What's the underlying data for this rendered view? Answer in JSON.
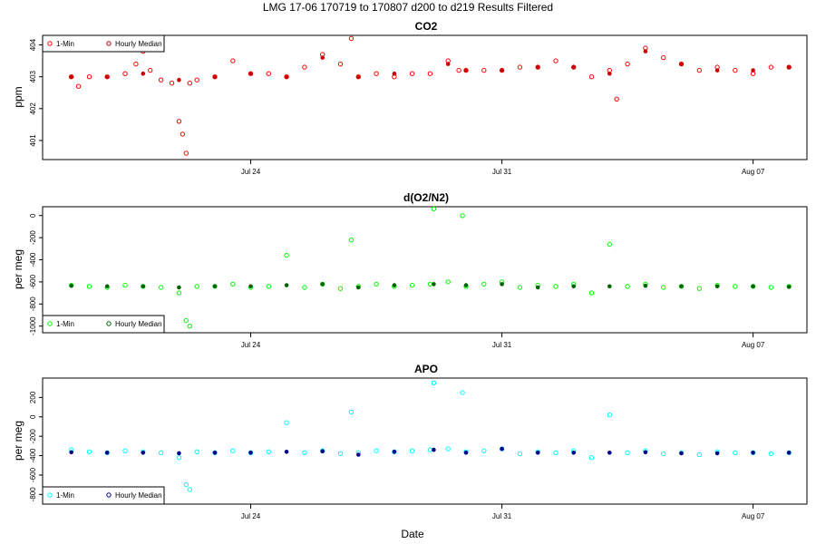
{
  "figure": {
    "title": "LMG   17-06    170719 to 170807    d200 to d219    Results Filtered",
    "xlabel": "Date"
  },
  "colors": {
    "co2_min": "#ff0000",
    "co2_hourly": "#cc0000",
    "o2_min": "#00ff00",
    "o2_hourly": "#006400",
    "apo_min": "#00ffff",
    "apo_hourly": "#00008b"
  },
  "chart_data": [
    {
      "type": "scatter",
      "title": "CO2",
      "xlabel": "",
      "ylabel": "ppm",
      "x_ticks": [
        "Jul 24",
        "Jul 31",
        "Aug 07"
      ],
      "x_tick_days": [
        24,
        31,
        38
      ],
      "xlim_days": [
        18.2,
        39.5
      ],
      "ylim": [
        400.4,
        404.3
      ],
      "y_ticks": [
        401,
        402,
        403,
        404
      ],
      "legend": {
        "position": "top-left",
        "entries": [
          "1-Min",
          "Hourly Median"
        ]
      },
      "grid": false,
      "series": [
        {
          "name": "1-Min",
          "x_days": [
            19.0,
            19.2,
            19.5,
            20.0,
            20.5,
            20.8,
            21.0,
            21.2,
            21.5,
            21.8,
            22.0,
            22.1,
            22.2,
            22.3,
            22.5,
            23.0,
            23.5,
            24.0,
            24.5,
            25.0,
            25.5,
            26.0,
            26.5,
            26.8,
            27.0,
            27.5,
            28.0,
            28.5,
            29.0,
            29.5,
            29.8,
            30.0,
            30.5,
            31.0,
            31.5,
            32.0,
            32.5,
            33.0,
            33.5,
            34.0,
            34.2,
            34.5,
            35.0,
            35.5,
            36.0,
            36.5,
            37.0,
            37.5,
            38.0,
            38.5,
            39.0
          ],
          "values": [
            403.0,
            402.7,
            403.0,
            403.0,
            403.1,
            403.4,
            403.8,
            403.2,
            402.9,
            402.8,
            401.6,
            401.2,
            400.6,
            402.8,
            402.9,
            403.0,
            403.5,
            403.1,
            403.1,
            403.0,
            403.3,
            403.7,
            403.4,
            404.2,
            403.0,
            403.1,
            403.0,
            403.1,
            403.1,
            403.5,
            403.2,
            403.2,
            403.2,
            403.2,
            403.3,
            403.3,
            403.5,
            403.3,
            403.0,
            403.2,
            402.3,
            403.4,
            403.9,
            403.6,
            403.4,
            403.2,
            403.3,
            403.2,
            403.1,
            403.3,
            403.3
          ]
        },
        {
          "name": "Hourly Median",
          "x_days": [
            19.0,
            20.0,
            21.0,
            22.0,
            23.0,
            24.0,
            25.0,
            26.0,
            27.0,
            28.0,
            29.5,
            30.0,
            31.0,
            32.0,
            33.0,
            34.0,
            35.0,
            36.0,
            37.0,
            38.0,
            39.0
          ],
          "values": [
            403.0,
            403.0,
            403.1,
            402.9,
            403.0,
            403.1,
            403.0,
            403.6,
            403.0,
            403.1,
            403.4,
            403.2,
            403.2,
            403.3,
            403.3,
            403.1,
            403.8,
            403.4,
            403.2,
            403.2,
            403.3
          ]
        }
      ]
    },
    {
      "type": "scatter",
      "title": "d(O2/N2)",
      "xlabel": "",
      "ylabel": "per meg",
      "x_ticks": [
        "Jul 24",
        "Jul 31",
        "Aug 07"
      ],
      "x_tick_days": [
        24,
        31,
        38
      ],
      "xlim_days": [
        18.2,
        39.5
      ],
      "ylim": [
        -1060,
        80
      ],
      "y_ticks": [
        -1000,
        -800,
        -600,
        -400,
        -200,
        0
      ],
      "legend": {
        "position": "bottom-left",
        "entries": [
          "1-Min",
          "Hourly Median"
        ]
      },
      "grid": false,
      "series": [
        {
          "name": "1-Min",
          "x_days": [
            19.0,
            19.5,
            20.0,
            20.5,
            21.0,
            21.5,
            22.0,
            22.2,
            22.3,
            22.5,
            23.0,
            23.5,
            24.0,
            24.5,
            25.0,
            25.5,
            26.0,
            26.5,
            26.8,
            27.0,
            27.5,
            28.0,
            28.5,
            29.0,
            29.1,
            29.5,
            29.9,
            30.0,
            30.5,
            31.0,
            31.5,
            32.0,
            32.5,
            33.0,
            33.5,
            34.0,
            34.5,
            35.0,
            35.5,
            36.0,
            36.5,
            37.0,
            37.5,
            38.0,
            38.5,
            39.0
          ],
          "values": [
            -630,
            -640,
            -650,
            -630,
            -640,
            -650,
            -700,
            -950,
            -1000,
            -640,
            -640,
            -620,
            -650,
            -640,
            -360,
            -650,
            -620,
            -660,
            -220,
            -640,
            -620,
            -640,
            -630,
            -620,
            60,
            -600,
            0,
            -640,
            -620,
            -600,
            -650,
            -630,
            -640,
            -620,
            -700,
            -260,
            -640,
            -620,
            -650,
            -640,
            -660,
            -630,
            -640,
            -640,
            -650,
            -640
          ]
        },
        {
          "name": "Hourly Median",
          "x_days": [
            19.0,
            20.0,
            21.0,
            22.0,
            23.0,
            24.0,
            25.0,
            26.0,
            27.0,
            28.0,
            29.1,
            30.0,
            31.0,
            32.0,
            33.0,
            34.0,
            35.0,
            36.0,
            37.0,
            38.0,
            39.0
          ],
          "values": [
            -635,
            -640,
            -640,
            -650,
            -640,
            -640,
            -630,
            -620,
            -650,
            -630,
            -620,
            -630,
            -620,
            -650,
            -640,
            -640,
            -635,
            -640,
            -640,
            -640,
            -645
          ]
        }
      ]
    },
    {
      "type": "scatter",
      "title": "APO",
      "xlabel": "",
      "ylabel": "per meg",
      "x_ticks": [
        "Jul 24",
        "Jul 31",
        "Aug 07"
      ],
      "x_tick_days": [
        24,
        31,
        38
      ],
      "xlim_days": [
        18.2,
        39.5
      ],
      "ylim": [
        -900,
        400
      ],
      "y_ticks": [
        -800,
        -600,
        -400,
        -200,
        0,
        200
      ],
      "legend": {
        "position": "bottom-left",
        "entries": [
          "1-Min",
          "Hourly Median"
        ]
      },
      "grid": false,
      "series": [
        {
          "name": "1-Min",
          "x_days": [
            19.0,
            19.5,
            20.0,
            20.5,
            21.0,
            21.5,
            22.0,
            22.2,
            22.3,
            22.5,
            23.0,
            23.5,
            24.0,
            24.5,
            25.0,
            25.5,
            26.0,
            26.5,
            26.8,
            27.0,
            27.5,
            28.0,
            28.5,
            29.0,
            29.1,
            29.5,
            29.9,
            30.0,
            30.5,
            31.0,
            31.5,
            32.0,
            32.5,
            33.0,
            33.5,
            34.0,
            34.5,
            35.0,
            35.5,
            36.0,
            36.5,
            37.0,
            37.5,
            38.0,
            38.5,
            39.0
          ],
          "values": [
            -340,
            -360,
            -370,
            -350,
            -360,
            -370,
            -420,
            -700,
            -750,
            -360,
            -370,
            -350,
            -370,
            -360,
            -60,
            -370,
            -350,
            -380,
            50,
            -370,
            -350,
            -360,
            -350,
            -340,
            350,
            -330,
            250,
            -360,
            -350,
            -330,
            -380,
            -360,
            -370,
            -350,
            -420,
            20,
            -370,
            -350,
            -380,
            -370,
            -390,
            -360,
            -370,
            -370,
            -380,
            -370
          ]
        },
        {
          "name": "Hourly Median",
          "x_days": [
            19.0,
            20.0,
            21.0,
            22.0,
            23.0,
            24.0,
            25.0,
            26.0,
            27.0,
            28.0,
            29.1,
            30.0,
            31.0,
            32.0,
            33.0,
            34.0,
            35.0,
            36.0,
            37.0,
            38.0,
            39.0
          ],
          "values": [
            -365,
            -370,
            -370,
            -375,
            -370,
            -370,
            -360,
            -355,
            -390,
            -360,
            -340,
            -370,
            -330,
            -370,
            -370,
            -370,
            -365,
            -375,
            -375,
            -370,
            -370
          ]
        }
      ]
    }
  ]
}
